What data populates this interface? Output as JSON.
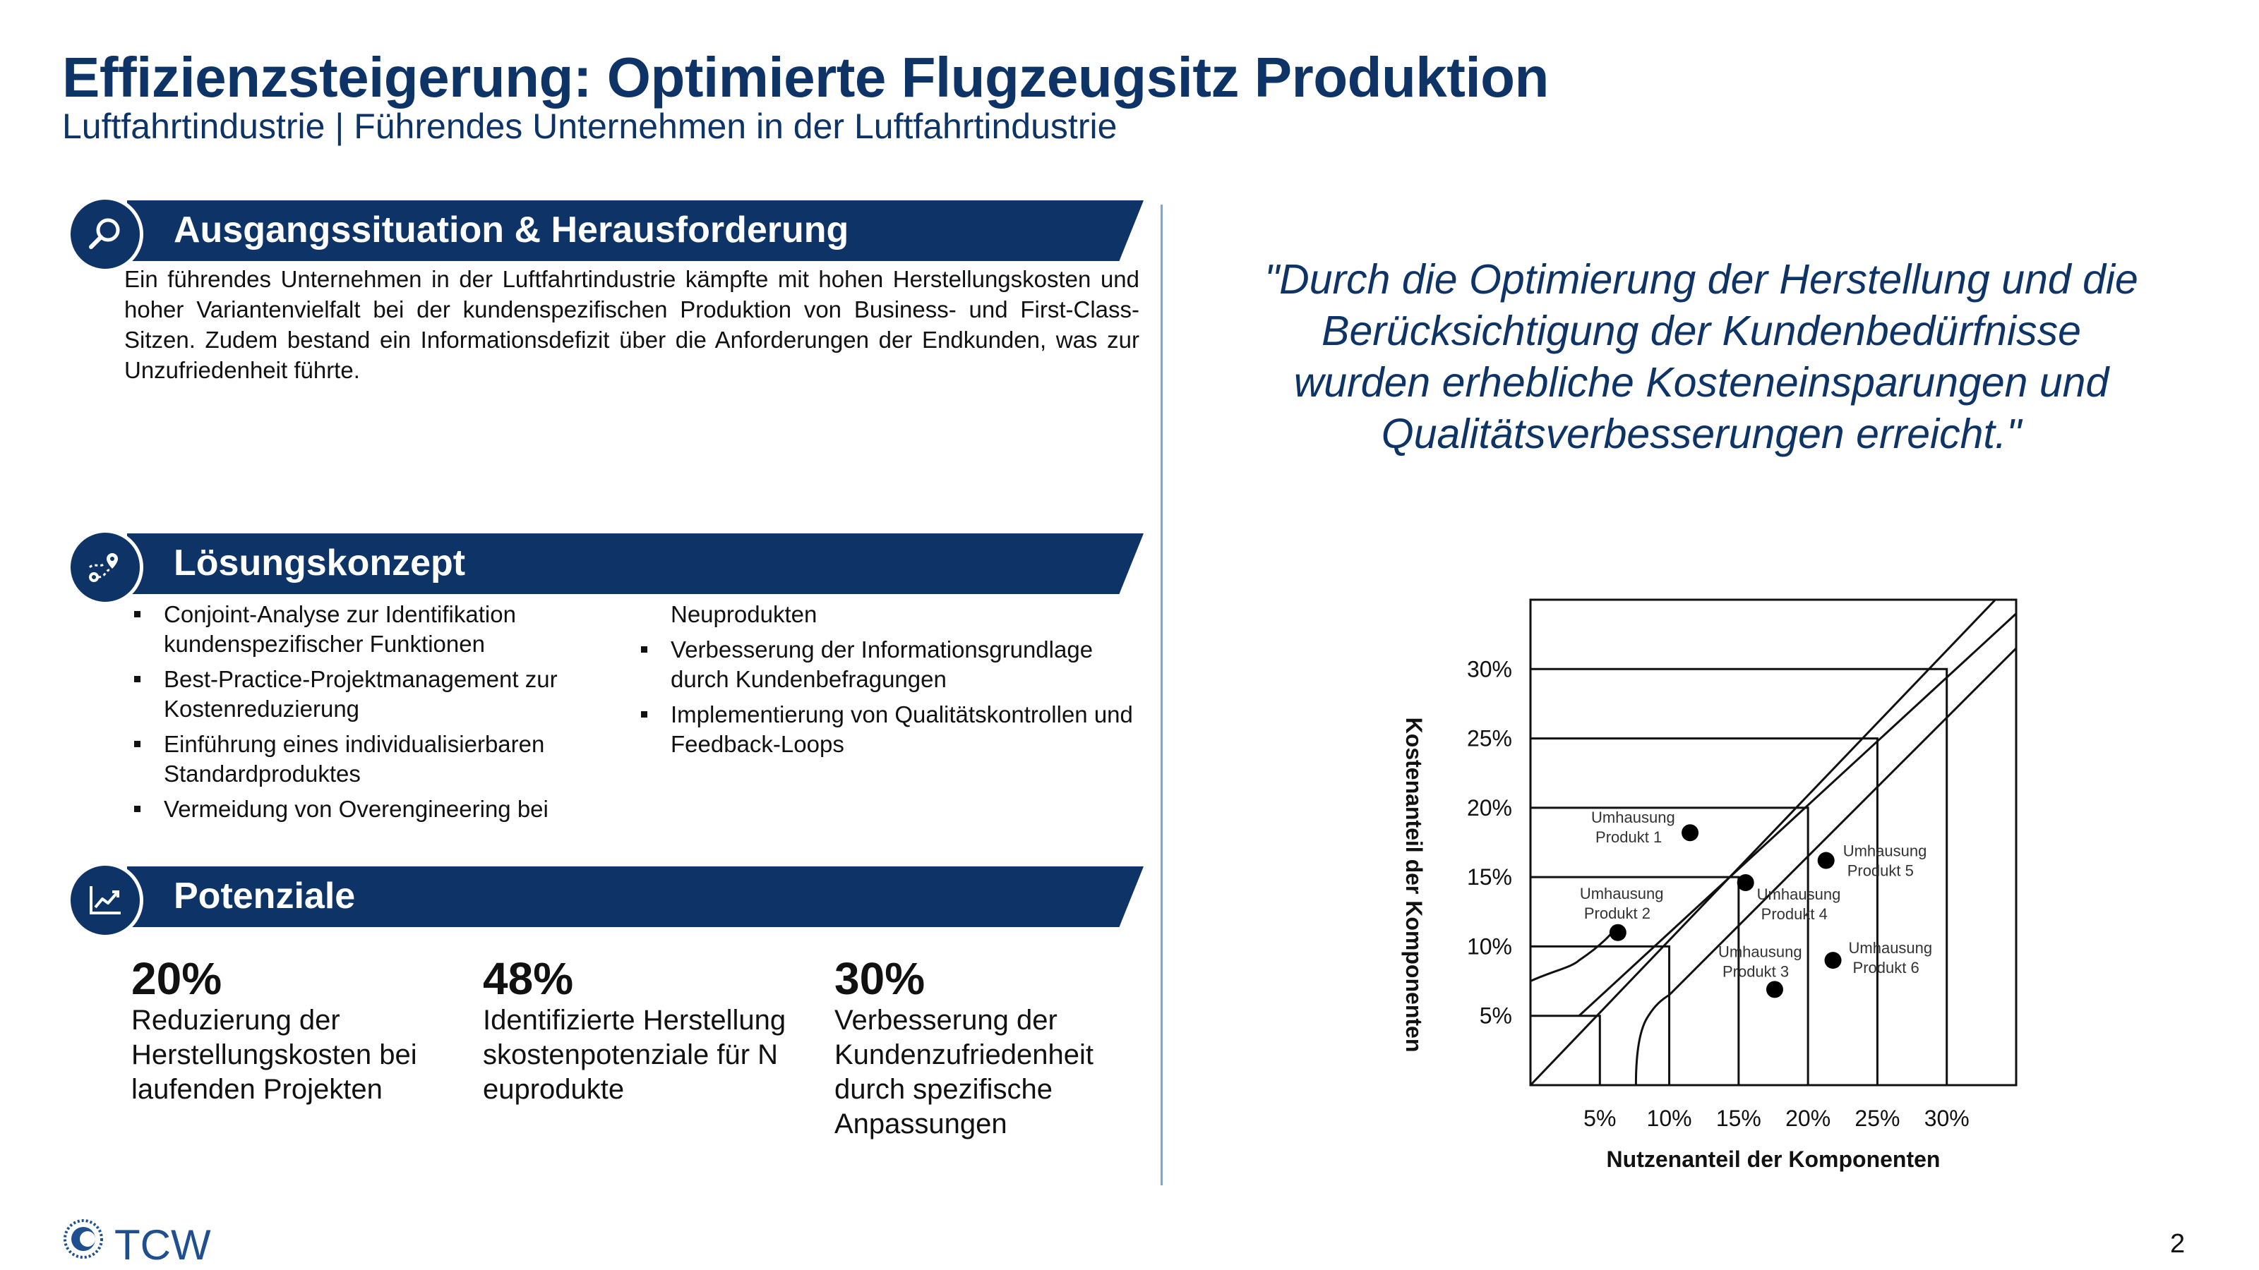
{
  "header": {
    "title": "Effizienzsteigerung: Optimierte Flugzeugsitz Produktion",
    "subtitle": "Luftfahrtindustrie | Führendes Unternehmen in der Luftfahrtindustrie"
  },
  "sections": {
    "situation": {
      "heading": "Ausgangssituation & Herausforderung",
      "icon": "magnifier-icon",
      "text": "Ein führendes Unternehmen in der Luftfahrtindustrie kämpfte mit hohen Herstellungskosten und hoher Variantenvielfalt bei der kundenspezifischen Produktion von Business- und First-Class-Sitzen. Zudem bestand ein Informationsdefizit über die Anforderungen der Endkunden, was zur Unzufriedenheit führte."
    },
    "solution": {
      "heading": "Lösungskonzept",
      "icon": "route-icon",
      "bullets_left": [
        "Conjoint-Analyse zur Identifikation kundenspezifischer Funktionen",
        "Best-Practice-Projektmanagement zur Kostenreduzierung",
        "Einführung eines individualisierbaren Standardproduktes",
        "Vermeidung von Overengineering bei"
      ],
      "continuation": "Neuprodukten",
      "bullets_right": [
        "Verbesserung der Informationsgrundlage durch Kundenbefragungen",
        "Implementierung von Qualitätskontrollen und Feedback-Loops"
      ]
    },
    "potential": {
      "heading": "Potenziale",
      "icon": "trend-chart-icon",
      "stats": [
        {
          "value": "20%",
          "description": "Reduzierung der Herstellungskosten bei laufenden Projekten"
        },
        {
          "value": "48%",
          "description": "Identifizierte Herstellungskostenpotenziale für Neuprodukte"
        },
        {
          "value": "30%",
          "description": "Verbesserung der Kundenzufriedenheit durch spezifische Anpassungen"
        }
      ]
    }
  },
  "quote": "\"Durch die Optimierung der Herstellung und die Berücksichtigung der Kundenbedürfnisse wurden erhebliche Kosteneinsparungen und Qualitätsverbesserungen erreicht.\"",
  "chart_data": {
    "type": "scatter",
    "xlabel": "Nutzenanteil der Komponenten",
    "ylabel": "Kostenanteil der Komponenten",
    "xlim": [
      0,
      35
    ],
    "ylim": [
      0,
      35
    ],
    "x_ticks": [
      "5%",
      "10%",
      "15%",
      "20%",
      "25%",
      "30%"
    ],
    "y_ticks": [
      "5%",
      "10%",
      "15%",
      "20%",
      "25%",
      "30%"
    ],
    "grid": false,
    "points": [
      {
        "label": "Umhausung Produkt 1",
        "x": 11.5,
        "y": 18.2
      },
      {
        "label": "Umhausung Produkt 2",
        "x": 6.3,
        "y": 11.0
      },
      {
        "label": "Umhausung Produkt 3",
        "x": 17.6,
        "y": 6.9
      },
      {
        "label": "Umhausung Produkt 4",
        "x": 15.5,
        "y": 14.6
      },
      {
        "label": "Umhausung Produkt 5",
        "x": 21.3,
        "y": 16.2
      },
      {
        "label": "Umhausung Produkt 6",
        "x": 21.8,
        "y": 9.0
      }
    ]
  },
  "footer": {
    "logo_text": "TCW",
    "page_number": "2"
  },
  "colors": {
    "brand": "#0e3366",
    "text": "#111111"
  }
}
